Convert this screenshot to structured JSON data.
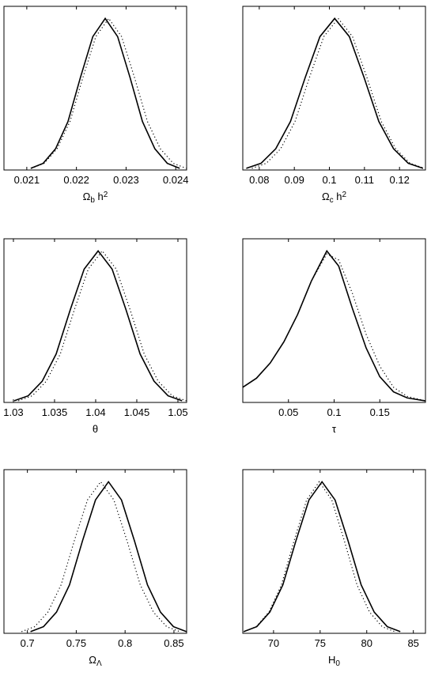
{
  "chart_data": [
    {
      "type": "line",
      "xlabel": [
        {
          "text": "Ω"
        },
        {
          "text": "b",
          "shift": "sub"
        },
        {
          "text": " h"
        },
        {
          "text": "2",
          "shift": "sup"
        }
      ],
      "xlim": [
        0.02054,
        0.02422
      ],
      "xticks": [
        0.021,
        0.022,
        0.023,
        0.024
      ],
      "ylim": [
        0,
        1.08
      ],
      "series": [
        {
          "color": "#000000",
          "dash": "solid",
          "x": [
            0.02108,
            0.02133,
            0.02158,
            0.02183,
            0.02208,
            0.02233,
            0.02258,
            0.02283,
            0.02308,
            0.02333,
            0.02358,
            0.02383,
            0.02408
          ],
          "values": [
            0.011,
            0.044,
            0.14,
            0.32,
            0.61,
            0.88,
            1,
            0.88,
            0.61,
            0.32,
            0.14,
            0.044,
            0.011
          ]
        },
        {
          "color": "#000000",
          "dash": "dotted",
          "x": [
            0.02109,
            0.02135,
            0.02161,
            0.02187,
            0.02213,
            0.02239,
            0.02265,
            0.02291,
            0.02317,
            0.02343,
            0.02369,
            0.02395,
            0.02421
          ],
          "values": [
            0.011,
            0.044,
            0.14,
            0.32,
            0.61,
            0.88,
            1,
            0.88,
            0.61,
            0.32,
            0.14,
            0.044,
            0.011
          ]
        }
      ]
    },
    {
      "type": "line",
      "xlabel": [
        {
          "text": "Ω"
        },
        {
          "text": "c",
          "shift": "sub"
        },
        {
          "text": " h"
        },
        {
          "text": "2",
          "shift": "sup"
        }
      ],
      "xlim": [
        0.0753,
        0.1274
      ],
      "xticks": [
        0.08,
        0.09,
        0.1,
        0.11,
        0.12
      ],
      "ylim": [
        0,
        1.08
      ],
      "series": [
        {
          "color": "#000000",
          "dash": "solid",
          "x": [
            0.0763,
            0.0805,
            0.0847,
            0.0889,
            0.0931,
            0.0973,
            0.1015,
            0.1057,
            0.1099,
            0.1141,
            0.1183,
            0.1225,
            0.1267
          ],
          "values": [
            0.011,
            0.044,
            0.14,
            0.32,
            0.61,
            0.88,
            1,
            0.88,
            0.61,
            0.32,
            0.14,
            0.044,
            0.011
          ]
        },
        {
          "color": "#000000",
          "dash": "dotted",
          "x": [
            0.0779,
            0.082,
            0.0861,
            0.0902,
            0.0943,
            0.0984,
            0.1025,
            0.1066,
            0.1107,
            0.1148,
            0.1189,
            0.123,
            0.1271
          ],
          "values": [
            0.011,
            0.044,
            0.14,
            0.32,
            0.61,
            0.88,
            1,
            0.88,
            0.61,
            0.32,
            0.14,
            0.044,
            0.011
          ]
        }
      ]
    },
    {
      "type": "line",
      "xlabel": [
        {
          "text": "θ"
        }
      ],
      "xlim": [
        1.02885,
        1.05106
      ],
      "xticks": [
        1.03,
        1.035,
        1.04,
        1.045,
        1.05
      ],
      "ylim": [
        0,
        1.08
      ],
      "series": [
        {
          "color": "#000000",
          "dash": "solid",
          "x": [
            1.0301,
            1.0318,
            1.0335,
            1.0352,
            1.0369,
            1.0386,
            1.0403,
            1.042,
            1.0437,
            1.0454,
            1.0471,
            1.0488,
            1.0505
          ],
          "values": [
            0.011,
            0.044,
            0.14,
            0.32,
            0.61,
            0.88,
            1,
            0.88,
            0.61,
            0.32,
            0.14,
            0.044,
            0.011
          ]
        },
        {
          "color": "#000000",
          "dash": "dotted",
          "x": [
            1.0306,
            1.0323,
            1.034,
            1.0357,
            1.0374,
            1.0391,
            1.0408,
            1.0425,
            1.0442,
            1.0459,
            1.0476,
            1.0493,
            1.051
          ],
          "values": [
            0.011,
            0.044,
            0.14,
            0.32,
            0.61,
            0.88,
            1,
            0.88,
            0.61,
            0.32,
            0.14,
            0.044,
            0.011
          ]
        }
      ]
    },
    {
      "type": "line",
      "xlabel": [
        {
          "text": "τ"
        }
      ],
      "xlim": [
        0,
        0.2
      ],
      "xticks": [
        0.05,
        0.1,
        0.15
      ],
      "ylim": [
        0,
        1.08
      ],
      "series": [
        {
          "color": "#000000",
          "dash": "solid",
          "x": [
            0,
            0.015,
            0.03,
            0.045,
            0.06,
            0.075,
            0.092,
            0.105,
            0.12,
            0.135,
            0.15,
            0.165,
            0.18,
            0.2
          ],
          "values": [
            0.1,
            0.16,
            0.26,
            0.4,
            0.58,
            0.8,
            1,
            0.9,
            0.62,
            0.36,
            0.17,
            0.07,
            0.03,
            0.01
          ]
        },
        {
          "color": "#000000",
          "dash": "dotted",
          "x": [
            0,
            0.015,
            0.03,
            0.045,
            0.06,
            0.075,
            0.092,
            0.105,
            0.12,
            0.135,
            0.15,
            0.165,
            0.18,
            0.2
          ],
          "values": [
            0.1,
            0.16,
            0.26,
            0.4,
            0.58,
            0.8,
            0.98,
            0.94,
            0.72,
            0.45,
            0.24,
            0.1,
            0.04,
            0.01
          ]
        }
      ]
    },
    {
      "type": "line",
      "xlabel": [
        {
          "text": "Ω"
        },
        {
          "text": "Λ",
          "shift": "sub"
        }
      ],
      "xlim": [
        0.676,
        0.863
      ],
      "xticks": [
        0.7,
        0.75,
        0.8,
        0.85
      ],
      "ylim": [
        0,
        1.08
      ],
      "series": [
        {
          "color": "#000000",
          "dash": "solid",
          "x": [
            0.7032,
            0.7165,
            0.7298,
            0.7431,
            0.7564,
            0.7697,
            0.783,
            0.7963,
            0.8096,
            0.8229,
            0.8362,
            0.8495,
            0.8628
          ],
          "values": [
            0.011,
            0.044,
            0.14,
            0.32,
            0.61,
            0.88,
            1,
            0.88,
            0.61,
            0.32,
            0.14,
            0.044,
            0.011
          ]
        },
        {
          "color": "#000000",
          "dash": "dotted",
          "x": [
            0.694,
            0.7075,
            0.721,
            0.7345,
            0.748,
            0.7615,
            0.775,
            0.7885,
            0.802,
            0.8155,
            0.829,
            0.8425,
            0.856
          ],
          "values": [
            0.011,
            0.044,
            0.14,
            0.32,
            0.61,
            0.88,
            1,
            0.88,
            0.61,
            0.32,
            0.14,
            0.044,
            0.011
          ]
        }
      ]
    },
    {
      "type": "line",
      "xlabel": [
        {
          "text": "H"
        },
        {
          "text": "0",
          "shift": "sub"
        }
      ],
      "xlim": [
        66.7,
        86.3
      ],
      "xticks": [
        70,
        75,
        80,
        85
      ],
      "ylim": [
        0,
        1.08
      ],
      "series": [
        {
          "color": "#000000",
          "dash": "solid",
          "x": [
            66.8,
            68.2,
            69.6,
            71,
            72.4,
            73.8,
            75.2,
            76.6,
            78,
            79.4,
            80.8,
            82.2,
            83.6
          ],
          "values": [
            0.011,
            0.044,
            0.14,
            0.32,
            0.61,
            0.88,
            1,
            0.88,
            0.61,
            0.32,
            0.14,
            0.044,
            0.011
          ]
        },
        {
          "color": "#000000",
          "dash": "dotted",
          "x": [
            66.8,
            68.15,
            69.5,
            70.85,
            72.2,
            73.55,
            74.9,
            76.25,
            77.6,
            78.95,
            80.3,
            81.65,
            83
          ],
          "values": [
            0.011,
            0.044,
            0.14,
            0.32,
            0.61,
            0.88,
            1,
            0.88,
            0.61,
            0.32,
            0.14,
            0.044,
            0.011
          ]
        }
      ]
    }
  ]
}
